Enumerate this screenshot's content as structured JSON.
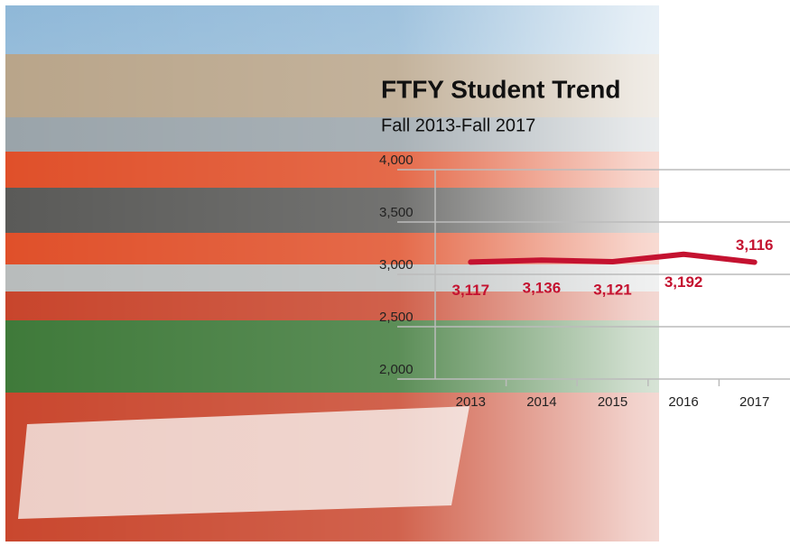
{
  "chart_data": {
    "type": "line",
    "title": "FTFY Student Trend",
    "subtitle": "Fall 2013-Fall 2017",
    "categories": [
      "2013",
      "2014",
      "2015",
      "2016",
      "2017"
    ],
    "values": [
      3117,
      3136,
      3121,
      3192,
      3116
    ],
    "value_labels": [
      "3,117",
      "3,136",
      "3,121",
      "3,192",
      "3,116"
    ],
    "color": "#c41230",
    "ylim": [
      2000,
      4000
    ],
    "yticks": [
      {
        "value": 2000,
        "label": "2,000"
      },
      {
        "value": 2500,
        "label": "2,500"
      },
      {
        "value": 3000,
        "label": "3,000"
      },
      {
        "value": 3500,
        "label": "3,500"
      },
      {
        "value": 4000,
        "label": "4,000"
      }
    ],
    "grid": true
  }
}
